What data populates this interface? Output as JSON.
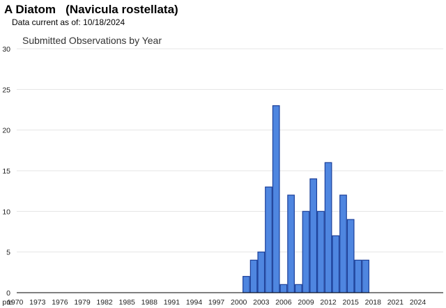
{
  "header": {
    "title": "A Diatom   (Navicula rostellata)",
    "data_current_label": "Data current as of:",
    "data_current_date": "10/18/2024"
  },
  "colors": {
    "bar_fill": "#4f86e0",
    "bar_stroke": "#1b3f99",
    "grid": "#e4e4e4",
    "axis": "#000000"
  },
  "chart_data": {
    "type": "bar",
    "title": "Submitted Observations by Year",
    "xlabel": "",
    "ylabel": "",
    "ylim": [
      0,
      30
    ],
    "yticks": [
      0,
      5,
      10,
      15,
      20,
      25,
      30
    ],
    "grid": true,
    "legend": "none",
    "categories": [
      "pre",
      "1970",
      "1971",
      "1972",
      "1973",
      "1974",
      "1975",
      "1976",
      "1977",
      "1978",
      "1979",
      "1980",
      "1981",
      "1982",
      "1983",
      "1984",
      "1985",
      "1986",
      "1987",
      "1988",
      "1989",
      "1990",
      "1991",
      "1992",
      "1993",
      "1994",
      "1995",
      "1996",
      "1997",
      "1998",
      "1999",
      "2000",
      "2001",
      "2002",
      "2003",
      "2004",
      "2005",
      "2006",
      "2007",
      "2008",
      "2009",
      "2010",
      "2011",
      "2012",
      "2013",
      "2014",
      "2015",
      "2016",
      "2017",
      "2018",
      "2019",
      "2020",
      "2021",
      "2022",
      "2023",
      "2024"
    ],
    "values": [
      0,
      0,
      0,
      0,
      0,
      0,
      0,
      0,
      0,
      0,
      0,
      0,
      0,
      0,
      0,
      0,
      0,
      0,
      0,
      0,
      0,
      0,
      0,
      0,
      0,
      0,
      0,
      0,
      0,
      0,
      0,
      0,
      2,
      4,
      5,
      13,
      23,
      1,
      12,
      1,
      10,
      14,
      10,
      16,
      7,
      12,
      9,
      4,
      4,
      0,
      0,
      0,
      0,
      0,
      0,
      0
    ],
    "xtick_labels": [
      "pre",
      "1970",
      "1973",
      "1976",
      "1979",
      "1982",
      "1985",
      "1988",
      "1991",
      "1994",
      "1997",
      "2000",
      "2003",
      "2006",
      "2009",
      "2012",
      "2015",
      "2018",
      "2021",
      "2024"
    ]
  }
}
